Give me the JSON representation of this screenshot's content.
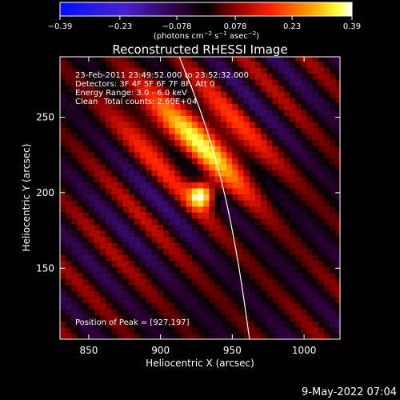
{
  "page": {
    "footer_timestamp": "9-May-2022 07:04"
  },
  "chart_data": {
    "type": "heatmap",
    "title": "Reconstructed RHESSI Image",
    "xlabel": "Heliocentric X (arcsec)",
    "ylabel": "Heliocentric Y (arcsec)",
    "xlim": [
      830,
      1025
    ],
    "ylim": [
      103,
      290
    ],
    "xticks": [
      850,
      900,
      950,
      1000
    ],
    "yticks": [
      150,
      200,
      250
    ],
    "colorbar": {
      "range": [
        -0.39,
        0.39
      ],
      "tick_labels": [
        "-0.39",
        "-0.23",
        "-0.078",
        "0.078",
        "0.23",
        "0.39"
      ],
      "unit_label_parts": [
        "(photons cm",
        "-2",
        " s",
        "-1",
        " asec",
        "-2",
        ")"
      ],
      "colormap": "blue-purple-black-red-yellow-white"
    },
    "annotations": {
      "time_range": "23-Feb-2011 23:49:52.000 to 23:52:32.000",
      "detectors": "Detectors: 3F 4F 5F 6F 7F 8F, Att 0",
      "energy_range": "Energy Range: 3.0 - 6.0 keV",
      "clean_label": "Clean",
      "total_counts": "Total counts: 2.60E+04",
      "peak_position": "Position of Peak = [927,197]"
    },
    "peak": {
      "x": 927,
      "y": 197,
      "value": 0.39
    },
    "secondary_sources": [
      {
        "x": 935,
        "y": 232,
        "value": 0.22
      },
      {
        "x": 895,
        "y": 240,
        "value": 0.12
      }
    ],
    "limb_curve": [
      {
        "x": 913,
        "y": 290
      },
      {
        "x": 930,
        "y": 250
      },
      {
        "x": 945,
        "y": 200
      },
      {
        "x": 955,
        "y": 150
      },
      {
        "x": 962,
        "y": 103
      }
    ],
    "pixel_size_arcsec": 4,
    "grid": false
  }
}
